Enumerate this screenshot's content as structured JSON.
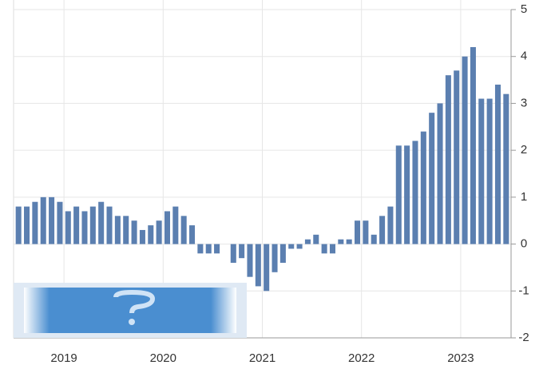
{
  "chart_data": {
    "type": "bar",
    "categories": [
      null,
      null,
      null,
      null,
      null,
      null,
      "2019",
      null,
      null,
      null,
      null,
      null,
      null,
      null,
      null,
      null,
      null,
      null,
      "2020",
      null,
      null,
      null,
      null,
      null,
      null,
      null,
      null,
      null,
      null,
      null,
      "2021",
      null,
      null,
      null,
      null,
      null,
      null,
      null,
      null,
      null,
      null,
      null,
      "2022",
      null,
      null,
      null,
      null,
      null,
      null,
      null,
      null,
      null,
      null,
      null,
      "2023",
      null,
      null,
      null,
      null,
      null
    ],
    "values": [
      0.8,
      0.8,
      0.9,
      1.0,
      1.0,
      0.9,
      0.7,
      0.8,
      0.7,
      0.8,
      0.9,
      0.8,
      0.6,
      0.6,
      0.5,
      0.3,
      0.4,
      0.5,
      0.7,
      0.8,
      0.6,
      0.4,
      -0.2,
      -0.2,
      -0.2,
      0,
      -0.4,
      -0.3,
      -0.7,
      -0.9,
      -1.0,
      -0.6,
      -0.4,
      -0.1,
      -0.1,
      0.1,
      0.2,
      -0.2,
      -0.2,
      0.1,
      0.1,
      0.5,
      0.5,
      0.2,
      0.6,
      0.8,
      2.1,
      2.1,
      2.2,
      2.4,
      2.8,
      3.0,
      3.6,
      3.7,
      4.0,
      4.2,
      3.1,
      3.1,
      3.4,
      3.2
    ],
    "color": "#5b7fb0",
    "ylim": [
      -2,
      5
    ],
    "yticks": [
      -2,
      -1,
      0,
      1,
      2,
      3,
      4,
      5
    ],
    "grid": true
  }
}
